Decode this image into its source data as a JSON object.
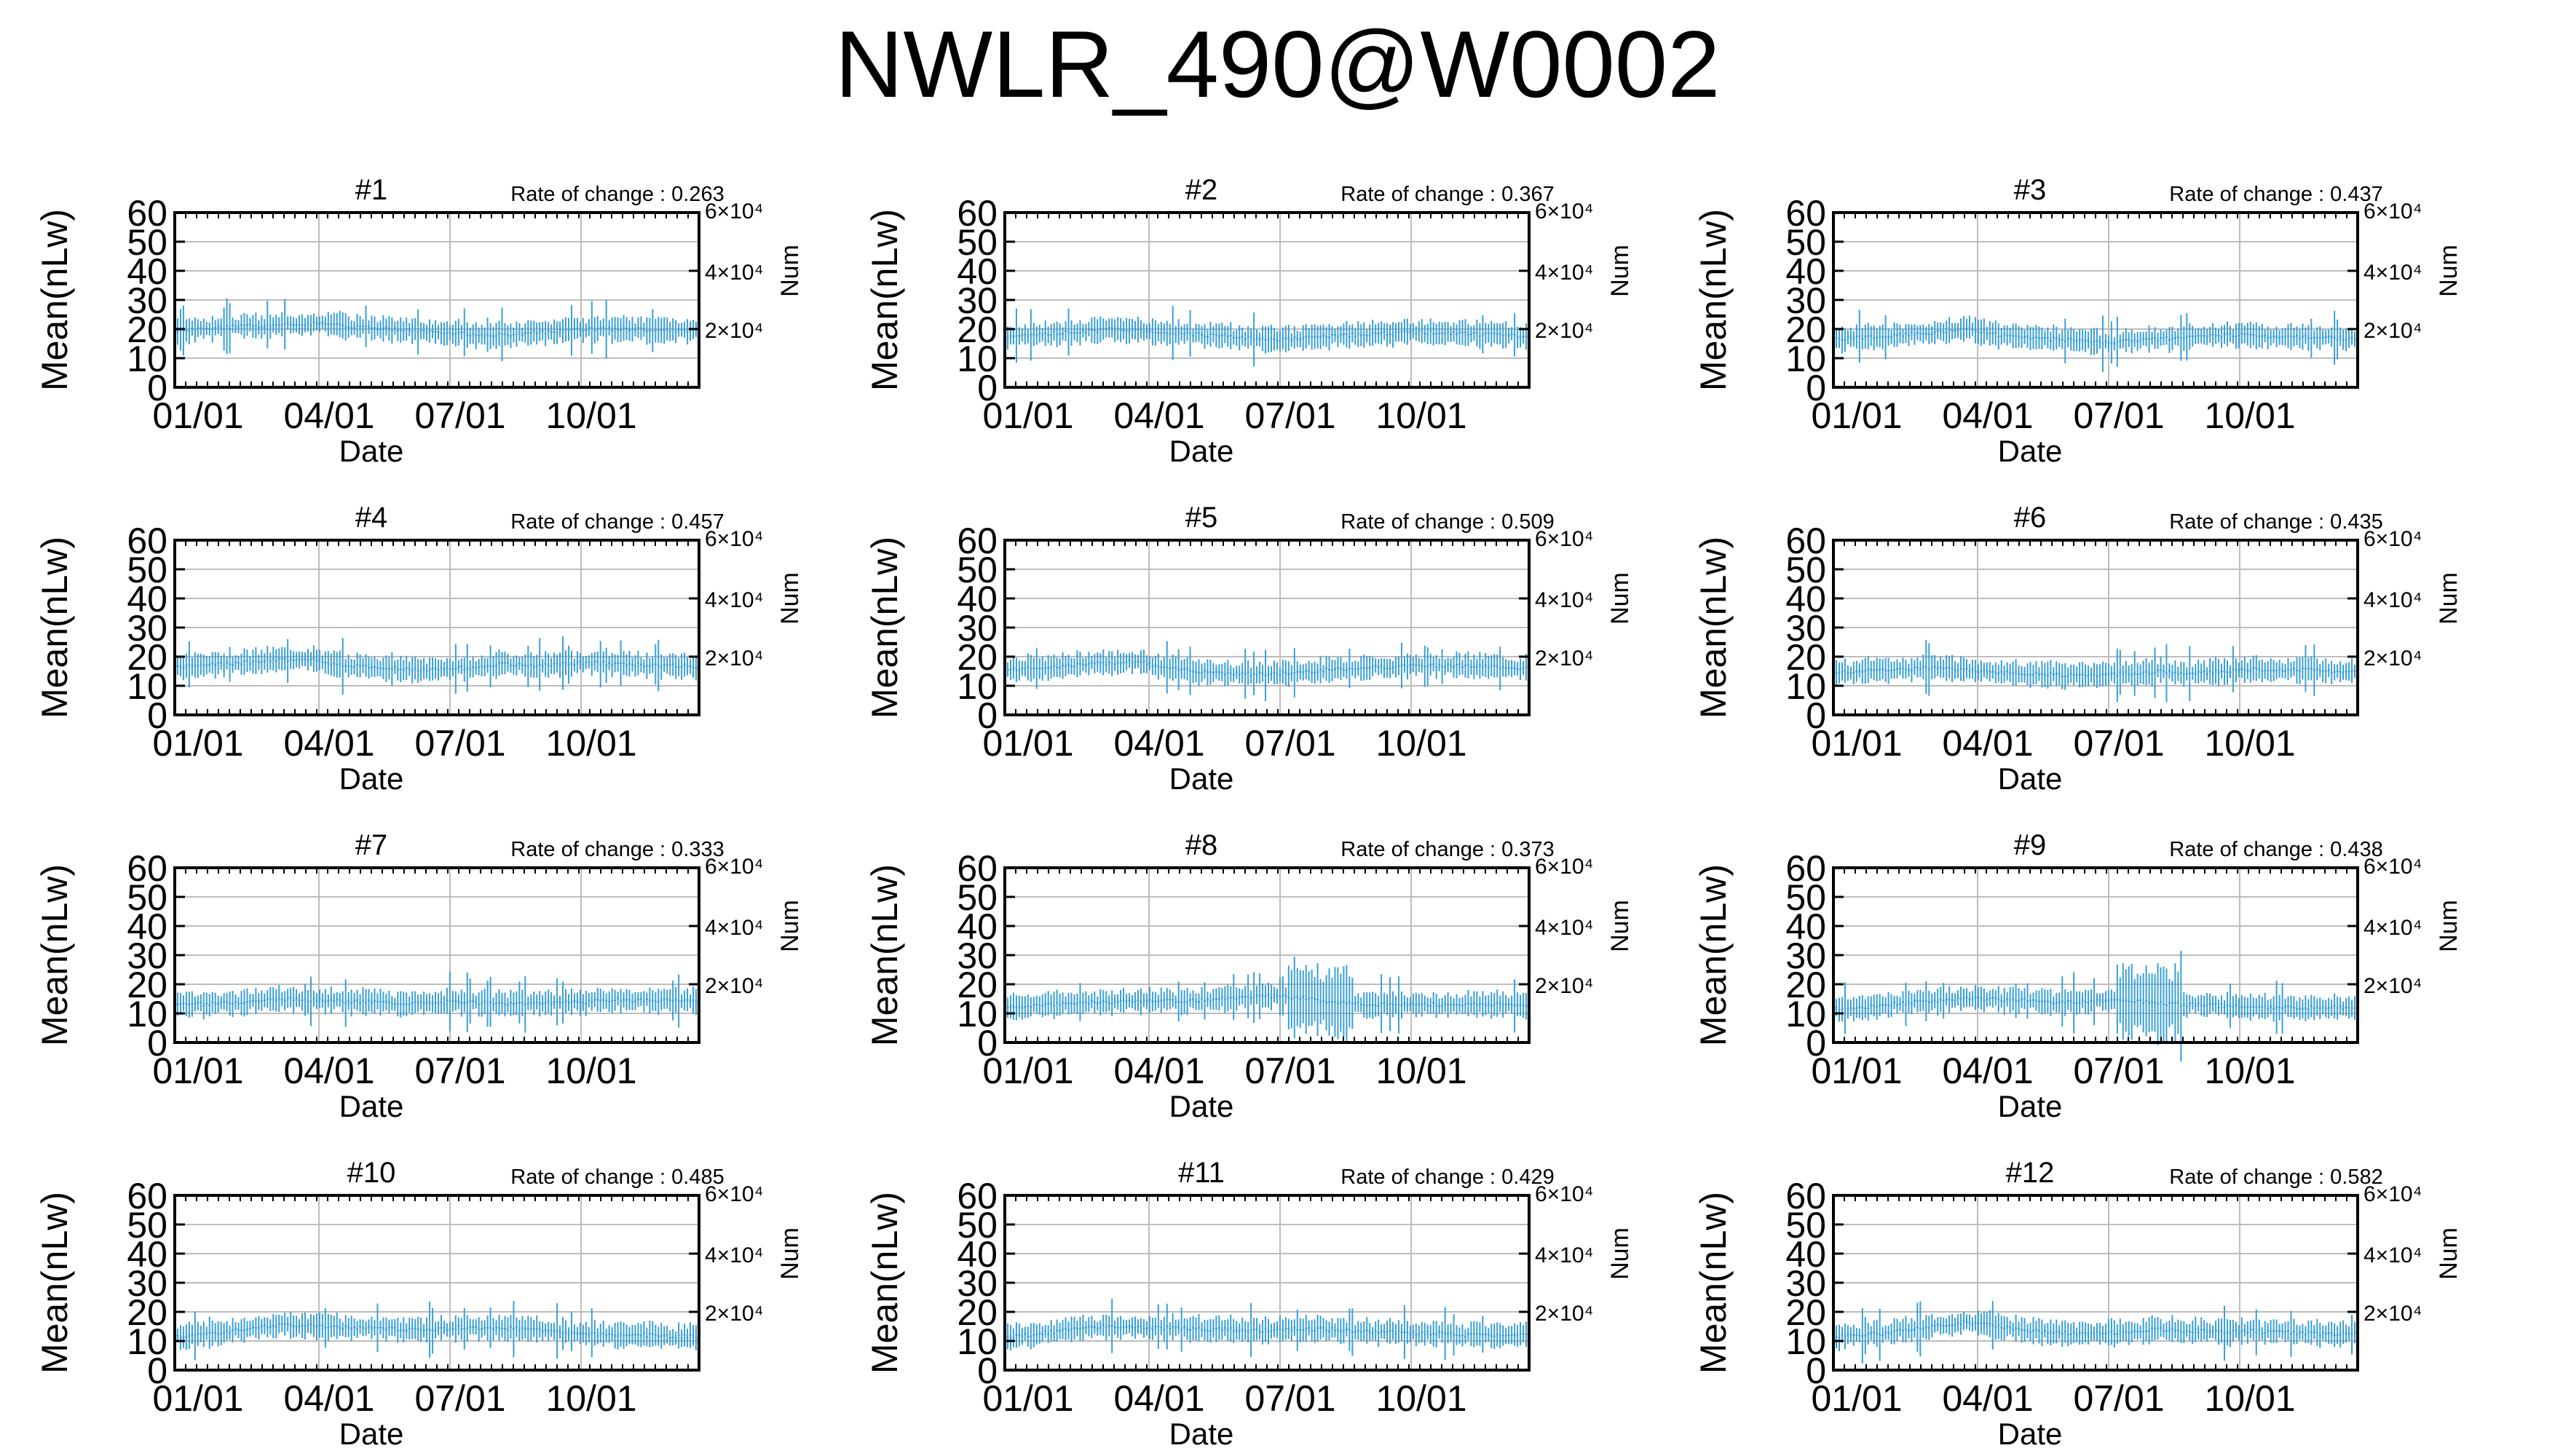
{
  "figure": {
    "title": "NWLR_490@W0002",
    "series_color": "#3a9fd6"
  },
  "chart_data": [
    {
      "type": "line",
      "title": "#1",
      "annotation": "Rate of change : 0.263",
      "xlabel": "Date",
      "ylabel": "Mean(nLw)",
      "y2label": "Num",
      "ylim": [
        0,
        60
      ],
      "yticks": [
        "0",
        "10",
        "20",
        "30",
        "40",
        "50",
        "60"
      ],
      "y2ticks": [
        "2×10⁴",
        "4×10⁴",
        "6×10⁴"
      ],
      "xticks": [
        "01/01",
        "04/01",
        "07/01",
        "10/01"
      ],
      "grid": true,
      "base": 19.5,
      "shape": [
        0,
        0.5,
        1,
        1.5,
        1.5,
        2,
        2.5,
        2,
        1.5,
        1,
        0.5,
        0,
        -0.5,
        -1,
        -1.5,
        -1.5,
        -1,
        -0.5,
        0,
        0.5,
        0.5,
        0.5,
        0.3,
        0,
        0
      ]
    },
    {
      "type": "line",
      "title": "#2",
      "annotation": "Rate of change : 0.367",
      "xlabel": "Date",
      "ylabel": "Mean(nLw)",
      "y2label": "Num",
      "ylim": [
        0,
        60
      ],
      "yticks": [
        "0",
        "10",
        "20",
        "30",
        "40",
        "50",
        "60"
      ],
      "y2ticks": [
        "2×10⁴",
        "4×10⁴",
        "6×10⁴"
      ],
      "xticks": [
        "01/01",
        "04/01",
        "07/01",
        "10/01"
      ],
      "grid": true,
      "base": 17.5,
      "shape": [
        0,
        0.5,
        1,
        1.5,
        2,
        2.5,
        2,
        1.5,
        1,
        0.5,
        0,
        -0.5,
        -1,
        -1,
        -0.5,
        0,
        0.5,
        1,
        1,
        1.5,
        1,
        1,
        0.5,
        0.5,
        0
      ]
    },
    {
      "type": "line",
      "title": "#3",
      "annotation": "Rate of change : 0.437",
      "xlabel": "Date",
      "ylabel": "Mean(nLw)",
      "y2label": "Num",
      "ylim": [
        0,
        60
      ],
      "yticks": [
        "0",
        "10",
        "20",
        "30",
        "40",
        "50",
        "60"
      ],
      "y2ticks": [
        "2×10⁴",
        "4×10⁴",
        "6×10⁴"
      ],
      "xticks": [
        "01/01",
        "04/01",
        "07/01",
        "10/01"
      ],
      "grid": true,
      "base": 16.5,
      "shape": [
        0,
        0.5,
        1,
        1.5,
        2,
        2.5,
        4,
        2,
        1,
        0.5,
        0,
        -0.5,
        -1,
        -1,
        -0.5,
        0,
        0.5,
        1,
        1.5,
        1.5,
        1,
        1,
        0.5,
        0.5,
        0
      ]
    },
    {
      "type": "line",
      "title": "#4",
      "annotation": "Rate of change : 0.457",
      "xlabel": "Date",
      "ylabel": "Mean(nLw)",
      "y2label": "Num",
      "ylim": [
        0,
        60
      ],
      "yticks": [
        "0",
        "10",
        "20",
        "30",
        "40",
        "50",
        "60"
      ],
      "y2ticks": [
        "2×10⁴",
        "4×10⁴",
        "6×10⁴"
      ],
      "xticks": [
        "01/01",
        "04/01",
        "07/01",
        "10/01"
      ],
      "grid": true,
      "base": 16.5,
      "shape": [
        0,
        0.5,
        1,
        1.5,
        2,
        2.5,
        3,
        1,
        0.5,
        0,
        -0.5,
        -1,
        -1,
        -0.5,
        0,
        1,
        0.5,
        0.5,
        1,
        1.5,
        1,
        1,
        0.5,
        0.5,
        0
      ]
    },
    {
      "type": "line",
      "title": "#5",
      "annotation": "Rate of change : 0.509",
      "xlabel": "Date",
      "ylabel": "Mean(nLw)",
      "y2label": "Num",
      "ylim": [
        0,
        60
      ],
      "yticks": [
        "0",
        "10",
        "20",
        "30",
        "40",
        "50",
        "60"
      ],
      "y2ticks": [
        "2×10⁴",
        "4×10⁴",
        "6×10⁴"
      ],
      "xticks": [
        "01/01",
        "04/01",
        "07/01",
        "10/01"
      ],
      "grid": true,
      "base": 15.5,
      "shape": [
        0,
        0.5,
        1,
        1.5,
        2,
        2.5,
        3,
        1,
        0,
        -0.5,
        -1,
        -1.5,
        -1.5,
        -1,
        -0.5,
        0,
        0.5,
        1,
        1,
        1.5,
        1.5,
        1.5,
        1,
        1,
        0.5
      ]
    },
    {
      "type": "line",
      "title": "#6",
      "annotation": "Rate of change : 0.435",
      "xlabel": "Date",
      "ylabel": "Mean(nLw)",
      "y2label": "Num",
      "ylim": [
        0,
        60
      ],
      "yticks": [
        "0",
        "10",
        "20",
        "30",
        "40",
        "50",
        "60"
      ],
      "y2ticks": [
        "2×10⁴",
        "4×10⁴",
        "6×10⁴"
      ],
      "xticks": [
        "01/01",
        "04/01",
        "07/01",
        "10/01"
      ],
      "grid": true,
      "base": 14.5,
      "shape": [
        0,
        0.5,
        1,
        1,
        1.5,
        1.5,
        1,
        0.5,
        0,
        -0.5,
        -0.5,
        -1,
        -1,
        -0.5,
        0,
        0.5,
        0,
        0,
        0.5,
        1,
        1,
        1,
        1,
        0.5,
        0.5
      ]
    },
    {
      "type": "line",
      "title": "#7",
      "annotation": "Rate of change : 0.333",
      "xlabel": "Date",
      "ylabel": "Mean(nLw)",
      "y2label": "Num",
      "ylim": [
        0,
        60
      ],
      "yticks": [
        "0",
        "10",
        "20",
        "30",
        "40",
        "50",
        "60"
      ],
      "y2ticks": [
        "2×10⁴",
        "4×10⁴",
        "6×10⁴"
      ],
      "xticks": [
        "01/01",
        "04/01",
        "07/01",
        "10/01"
      ],
      "grid": true,
      "base": 13.5,
      "shape": [
        0,
        -0.5,
        0,
        0.5,
        1,
        1.5,
        1,
        1,
        0.5,
        0.5,
        0,
        0,
        0,
        0.5,
        0,
        0,
        0,
        0,
        0.5,
        0.5,
        1,
        1,
        1,
        1,
        1
      ]
    },
    {
      "type": "line",
      "title": "#8",
      "annotation": "Rate of change : 0.373",
      "xlabel": "Date",
      "ylabel": "Mean(nLw)",
      "y2label": "Num",
      "ylim": [
        0,
        60
      ],
      "yticks": [
        "0",
        "10",
        "20",
        "30",
        "40",
        "50",
        "60"
      ],
      "y2ticks": [
        "2×10⁴",
        "4×10⁴",
        "6×10⁴"
      ],
      "xticks": [
        "01/01",
        "04/01",
        "07/01",
        "10/01"
      ],
      "grid": true,
      "base": 12.5,
      "shape": [
        0,
        0,
        0.5,
        1,
        1.5,
        1.5,
        2,
        2,
        1.5,
        2,
        2.5,
        3,
        3.5,
        3,
        2.5,
        1.5,
        1,
        0.5,
        0.5,
        0.5,
        0.5,
        0.5,
        0.5,
        0.5,
        0.5
      ],
      "spike": [
        13,
        16
      ]
    },
    {
      "type": "line",
      "title": "#9",
      "annotation": "Rate of change : 0.438",
      "xlabel": "Date",
      "ylabel": "Mean(nLw)",
      "y2label": "Num",
      "ylim": [
        0,
        60
      ],
      "yticks": [
        "0",
        "10",
        "20",
        "30",
        "40",
        "50",
        "60"
      ],
      "y2ticks": [
        "2×10⁴",
        "4×10⁴",
        "6×10⁴"
      ],
      "xticks": [
        "01/01",
        "04/01",
        "07/01",
        "10/01"
      ],
      "grid": true,
      "base": 11.5,
      "shape": [
        0,
        0.5,
        1,
        2,
        2.5,
        3,
        3.5,
        3.5,
        3,
        3,
        2.5,
        2.5,
        3,
        3,
        2.5,
        2,
        1.5,
        1.5,
        1,
        1,
        0.5,
        0.5,
        0.5,
        0.5,
        0.5
      ],
      "spike": [
        13,
        16
      ]
    },
    {
      "type": "line",
      "title": "#10",
      "annotation": "Rate of change : 0.485",
      "xlabel": "Date",
      "ylabel": "Mean(nLw)",
      "y2label": "Num",
      "ylim": [
        0,
        60
      ],
      "yticks": [
        "0",
        "10",
        "20",
        "30",
        "40",
        "50",
        "60"
      ],
      "y2ticks": [
        "2×10⁴",
        "4×10⁴",
        "6×10⁴"
      ],
      "xticks": [
        "01/01",
        "04/01",
        "07/01",
        "10/01"
      ],
      "grid": true,
      "base": 11.5,
      "shape": [
        0,
        0.5,
        1.5,
        2.5,
        3.5,
        4,
        4,
        3.5,
        3,
        3,
        2.5,
        2.5,
        2.5,
        3,
        3,
        3,
        2.5,
        2,
        1.5,
        1,
        0.5,
        0.5,
        0.5,
        0,
        0
      ]
    },
    {
      "type": "line",
      "title": "#11",
      "annotation": "Rate of change : 0.429",
      "xlabel": "Date",
      "ylabel": "Mean(nLw)",
      "y2label": "Num",
      "ylim": [
        0,
        60
      ],
      "yticks": [
        "0",
        "10",
        "20",
        "30",
        "40",
        "50",
        "60"
      ],
      "y2ticks": [
        "2×10⁴",
        "4×10⁴",
        "6×10⁴"
      ],
      "xticks": [
        "01/01",
        "04/01",
        "07/01",
        "10/01"
      ],
      "grid": true,
      "base": 11.5,
      "shape": [
        0,
        0.5,
        1.5,
        2.5,
        3,
        3.5,
        3.5,
        3,
        3,
        2.5,
        2.5,
        2,
        2,
        2.5,
        2.5,
        2.5,
        2,
        1.5,
        1.5,
        1,
        1,
        0.5,
        0.5,
        0.5,
        0.5
      ]
    },
    {
      "type": "line",
      "title": "#12",
      "annotation": "Rate of change : 0.582",
      "xlabel": "Date",
      "ylabel": "Mean(nLw)",
      "y2label": "Num",
      "ylim": [
        0,
        60
      ],
      "yticks": [
        "0",
        "10",
        "20",
        "30",
        "40",
        "50",
        "60"
      ],
      "y2ticks": [
        "2×10⁴",
        "4×10⁴",
        "6×10⁴"
      ],
      "xticks": [
        "01/01",
        "04/01",
        "07/01",
        "10/01"
      ],
      "grid": true,
      "base": 11.5,
      "shape": [
        0,
        0.5,
        1,
        2,
        3,
        4,
        5,
        4,
        3,
        2,
        1.5,
        1,
        1,
        1.5,
        2,
        2.5,
        2,
        2,
        1.5,
        2,
        1.5,
        1.5,
        1,
        1,
        1
      ]
    }
  ]
}
